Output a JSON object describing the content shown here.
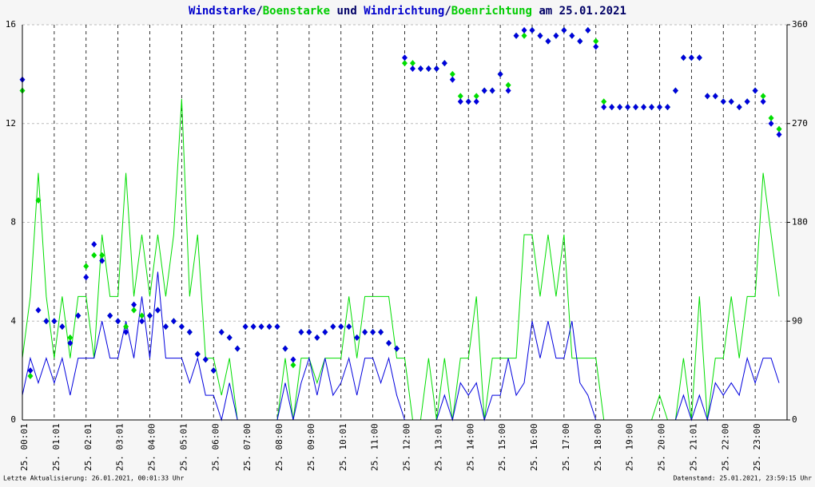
{
  "chart_data": {
    "type": "wind",
    "title_parts": [
      {
        "text": "Windstarke",
        "color": "#0000cc"
      },
      {
        "text": "/",
        "color": "#000066"
      },
      {
        "text": "Boenstarke",
        "color": "#00cc00"
      },
      {
        "text": " und ",
        "color": "#000066"
      },
      {
        "text": "Windrichtung",
        "color": "#0000cc"
      },
      {
        "text": "/",
        "color": "#000066"
      },
      {
        "text": "Boenrichtung",
        "color": "#00cc00"
      },
      {
        "text": " am 25.01.2021",
        "color": "#000066"
      }
    ],
    "footer_left": "Letzte Aktualisierung: 26.01.2021, 00:01:33 Uhr",
    "footer_right": "Datenstand: 25.01.2021, 23:59:15 Uhr",
    "xlim": [
      0,
      24
    ],
    "xticks": [
      {
        "value": 0,
        "label": "25. 00:01"
      },
      {
        "value": 1,
        "label": "25. 01:01"
      },
      {
        "value": 2,
        "label": "25. 02:01"
      },
      {
        "value": 3,
        "label": "25. 03:01"
      },
      {
        "value": 4,
        "label": "25. 04:00"
      },
      {
        "value": 5,
        "label": "25. 05:01"
      },
      {
        "value": 6,
        "label": "25. 06:00"
      },
      {
        "value": 7,
        "label": "25. 07:00"
      },
      {
        "value": 8,
        "label": "25. 08:00"
      },
      {
        "value": 9,
        "label": "25. 09:00"
      },
      {
        "value": 10,
        "label": "25. 10:01"
      },
      {
        "value": 11,
        "label": "25. 11:00"
      },
      {
        "value": 12,
        "label": "25. 12:00"
      },
      {
        "value": 13,
        "label": "25. 13:01"
      },
      {
        "value": 14,
        "label": "25. 14:00"
      },
      {
        "value": 15,
        "label": "25. 15:00"
      },
      {
        "value": 16,
        "label": "25. 16:00"
      },
      {
        "value": 17,
        "label": "25. 17:00"
      },
      {
        "value": 18,
        "label": "25. 18:00"
      },
      {
        "value": 19,
        "label": "25. 19:00"
      },
      {
        "value": 20,
        "label": "25. 20:00"
      },
      {
        "value": 21,
        "label": "25. 21:01"
      },
      {
        "value": 22,
        "label": "25. 22:00"
      },
      {
        "value": 23,
        "label": "25. 23:00"
      }
    ],
    "ylim": [
      0,
      16
    ],
    "yticks": [
      0,
      4,
      8,
      12,
      16
    ],
    "y2lim": [
      0,
      360
    ],
    "y2ticks": [
      0,
      90,
      180,
      270,
      360
    ],
    "x": [
      0,
      0.25,
      0.5,
      0.75,
      1,
      1.25,
      1.5,
      1.75,
      2,
      2.25,
      2.5,
      2.75,
      3,
      3.25,
      3.5,
      3.75,
      4,
      4.25,
      4.5,
      4.75,
      5,
      5.25,
      5.5,
      5.75,
      6,
      6.25,
      6.5,
      6.75,
      7,
      7.25,
      7.5,
      7.75,
      8,
      8.25,
      8.5,
      8.75,
      9,
      9.25,
      9.5,
      9.75,
      10,
      10.25,
      10.5,
      10.75,
      11,
      11.25,
      11.5,
      11.75,
      12,
      12.25,
      12.5,
      12.75,
      13,
      13.25,
      13.5,
      13.75,
      14,
      14.25,
      14.5,
      14.75,
      15,
      15.25,
      15.5,
      15.75,
      16,
      16.25,
      16.5,
      16.75,
      17,
      17.25,
      17.5,
      17.75,
      18,
      18.25,
      18.5,
      18.75,
      19,
      19.25,
      19.5,
      19.75,
      20,
      20.25,
      20.5,
      20.75,
      21,
      21.25,
      21.5,
      21.75,
      22,
      22.25,
      22.5,
      22.75,
      23,
      23.25,
      23.5,
      23.75
    ],
    "series": [
      {
        "name": "Boenstarke",
        "color": "#00dd00",
        "kind": "line",
        "values": [
          2.5,
          5,
          10,
          5,
          2.5,
          5,
          2.5,
          5,
          5,
          2.5,
          7.5,
          5,
          5,
          10,
          5,
          7.5,
          5,
          7.5,
          5,
          7.5,
          13,
          5,
          7.5,
          2.5,
          2.5,
          1,
          2.5,
          0,
          0,
          0,
          0,
          0,
          0,
          2.5,
          0,
          2.5,
          2.5,
          1.5,
          2.5,
          2.5,
          2.5,
          5,
          2.5,
          5,
          5,
          5,
          5,
          2.5,
          2.5,
          0,
          0,
          2.5,
          0,
          2.5,
          0,
          2.5,
          2.5,
          5,
          0,
          2.5,
          2.5,
          2.5,
          2.5,
          7.5,
          7.5,
          5,
          7.5,
          5,
          7.5,
          2.5,
          2.5,
          2.5,
          2.5,
          0,
          0,
          0,
          0,
          0,
          0,
          0,
          1,
          0,
          0,
          2.5,
          0,
          5,
          0,
          2.5,
          2.5,
          5,
          2.5,
          5,
          5,
          10,
          7.5,
          5
        ]
      },
      {
        "name": "Windstarke",
        "color": "#0000dd",
        "kind": "line",
        "values": [
          1,
          2.5,
          1.5,
          2.5,
          1.5,
          2.5,
          1,
          2.5,
          2.5,
          2.5,
          4,
          2.5,
          2.5,
          4,
          2.5,
          5,
          2.5,
          6,
          2.5,
          2.5,
          2.5,
          1.5,
          2.5,
          1,
          1,
          0,
          1.5,
          0,
          0,
          0,
          0,
          0,
          0,
          1.5,
          0,
          1.5,
          2.5,
          1,
          2.5,
          1,
          1.5,
          2.5,
          1,
          2.5,
          2.5,
          1.5,
          2.5,
          1,
          0,
          0,
          0,
          0,
          0,
          1,
          0,
          1.5,
          1,
          1.5,
          0,
          1,
          1,
          2.5,
          1,
          1.5,
          4,
          2.5,
          4,
          2.5,
          2.5,
          4,
          1.5,
          1,
          0,
          0,
          0,
          0,
          0,
          0,
          0,
          0,
          0,
          0,
          0,
          1,
          0,
          1,
          0,
          1.5,
          1,
          1.5,
          1,
          2.5,
          1.5,
          2.5,
          2.5,
          1.5
        ]
      },
      {
        "name": "Boenrichtung",
        "color": "#00dd00",
        "kind": "points",
        "axis": "y2",
        "values": [
          300,
          40,
          200,
          90,
          90,
          85,
          75,
          95,
          140,
          150,
          150,
          95,
          90,
          85,
          100,
          95,
          95,
          100,
          85,
          90,
          85,
          80,
          60,
          55,
          45,
          80,
          75,
          65,
          85,
          85,
          85,
          85,
          85,
          65,
          50,
          80,
          80,
          75,
          80,
          85,
          85,
          85,
          75,
          80,
          80,
          80,
          70,
          65,
          325,
          325,
          320,
          320,
          320,
          325,
          315,
          295,
          290,
          295,
          300,
          300,
          315,
          305,
          350,
          350,
          355,
          350,
          345,
          350,
          355,
          350,
          345,
          355,
          345,
          290,
          285,
          285,
          285,
          285,
          285,
          285,
          285,
          285,
          300,
          330,
          330,
          330,
          295,
          295,
          290,
          290,
          285,
          290,
          300,
          295,
          275,
          265
        ]
      },
      {
        "name": "Windrichtung",
        "color": "#0000dd",
        "kind": "points",
        "axis": "y2",
        "values": [
          310,
          45,
          100,
          90,
          90,
          85,
          70,
          95,
          130,
          160,
          145,
          95,
          90,
          80,
          105,
          90,
          95,
          100,
          85,
          90,
          85,
          80,
          60,
          55,
          45,
          80,
          75,
          65,
          85,
          85,
          85,
          85,
          85,
          65,
          55,
          80,
          80,
          75,
          80,
          85,
          85,
          85,
          75,
          80,
          80,
          80,
          70,
          65,
          330,
          320,
          320,
          320,
          320,
          325,
          310,
          290,
          290,
          290,
          300,
          300,
          315,
          300,
          350,
          355,
          355,
          350,
          345,
          350,
          355,
          350,
          345,
          355,
          340,
          285,
          285,
          285,
          285,
          285,
          285,
          285,
          285,
          285,
          300,
          330,
          330,
          330,
          295,
          295,
          290,
          290,
          285,
          290,
          300,
          290,
          270,
          260
        ]
      }
    ]
  }
}
